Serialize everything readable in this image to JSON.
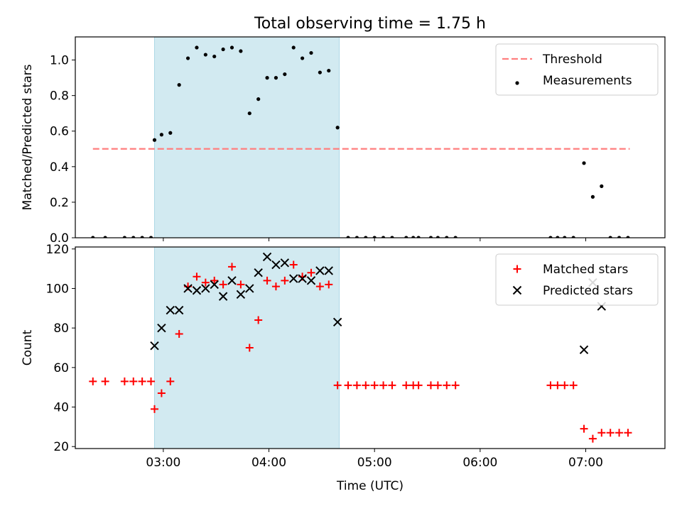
{
  "title": "Total observing time = 1.75 h",
  "chart_data": [
    {
      "type": "scatter",
      "title": "Total observing time = 1.75 h",
      "xlabel": "",
      "ylabel": "Matched/Predicted stars",
      "xlim": [
        "02:10",
        "07:45"
      ],
      "ylim": [
        0,
        1.13
      ],
      "yticks": [
        0.0,
        0.2,
        0.4,
        0.6,
        0.8,
        1.0
      ],
      "ytick_labels": [
        "0.0",
        "0.2",
        "0.4",
        "0.6",
        "0.8",
        "1.0"
      ],
      "xticks": [
        "03:00",
        "04:00",
        "05:00",
        "06:00",
        "07:00"
      ],
      "legend_position": "top-right",
      "shaded_interval": {
        "start": "02:55",
        "end": "04:40",
        "color": "#add8e6"
      },
      "threshold": {
        "name": "Threshold",
        "value": 0.5,
        "x_start": "02:20",
        "x_end": "07:25",
        "color": "#ff7f7f"
      },
      "series": [
        {
          "name": "Measurements",
          "color": "#000000",
          "x": [
            "02:20",
            "02:27",
            "02:38",
            "02:43",
            "02:48",
            "02:53",
            "02:55",
            "02:59",
            "03:04",
            "03:09",
            "03:14",
            "03:19",
            "03:24",
            "03:29",
            "03:34",
            "03:39",
            "03:44",
            "03:49",
            "03:54",
            "03:59",
            "04:04",
            "04:09",
            "04:14",
            "04:19",
            "04:24",
            "04:29",
            "04:34",
            "04:39",
            "04:45",
            "04:50",
            "04:55",
            "05:00",
            "05:05",
            "05:10",
            "05:18",
            "05:22",
            "05:25",
            "05:32",
            "05:36",
            "05:41",
            "05:46",
            "06:40",
            "06:44",
            "06:48",
            "06:53",
            "06:59",
            "07:04",
            "07:09",
            "07:14",
            "07:19",
            "07:24"
          ],
          "y": [
            0,
            0,
            0,
            0,
            0,
            0,
            0.55,
            0.58,
            0.59,
            0.86,
            1.01,
            1.07,
            1.03,
            1.02,
            1.06,
            1.07,
            1.05,
            0.7,
            0.78,
            0.9,
            0.9,
            0.92,
            1.07,
            1.01,
            1.04,
            0.93,
            0.94,
            0.62,
            0,
            0,
            0,
            0,
            0,
            0,
            0,
            0,
            0,
            0,
            0,
            0,
            0,
            0,
            0,
            0,
            0,
            0.42,
            0.23,
            0.29,
            0,
            0,
            0
          ]
        }
      ]
    },
    {
      "type": "scatter",
      "title": "",
      "xlabel": "Time (UTC)",
      "ylabel": "Count",
      "xlim": [
        "02:10",
        "07:45"
      ],
      "ylim": [
        19,
        121
      ],
      "yticks": [
        20,
        40,
        60,
        80,
        100,
        120
      ],
      "ytick_labels": [
        "20",
        "40",
        "60",
        "80",
        "100",
        "120"
      ],
      "xticks": [
        "03:00",
        "04:00",
        "05:00",
        "06:00",
        "07:00"
      ],
      "legend_position": "top-right",
      "shaded_interval": {
        "start": "02:55",
        "end": "04:40",
        "color": "#add8e6"
      },
      "series": [
        {
          "name": "Matched stars",
          "marker": "plus",
          "color": "#ff0000",
          "x": [
            "02:20",
            "02:27",
            "02:38",
            "02:43",
            "02:48",
            "02:53",
            "02:55",
            "02:59",
            "03:04",
            "03:09",
            "03:14",
            "03:19",
            "03:24",
            "03:29",
            "03:34",
            "03:39",
            "03:44",
            "03:49",
            "03:54",
            "03:59",
            "04:04",
            "04:09",
            "04:14",
            "04:19",
            "04:24",
            "04:29",
            "04:34",
            "04:39",
            "04:45",
            "04:50",
            "04:55",
            "05:00",
            "05:05",
            "05:10",
            "05:18",
            "05:22",
            "05:25",
            "05:32",
            "05:36",
            "05:41",
            "05:46",
            "06:40",
            "06:44",
            "06:48",
            "06:53",
            "06:59",
            "07:04",
            "07:09",
            "07:14",
            "07:19",
            "07:24"
          ],
          "y": [
            53,
            53,
            53,
            53,
            53,
            53,
            39,
            47,
            53,
            77,
            101,
            106,
            103,
            104,
            102,
            111,
            102,
            70,
            84,
            104,
            101,
            104,
            112,
            106,
            108,
            101,
            102,
            51,
            51,
            51,
            51,
            51,
            51,
            51,
            51,
            51,
            51,
            51,
            51,
            51,
            51,
            51,
            51,
            51,
            51,
            29,
            24,
            27,
            27,
            27,
            27
          ]
        },
        {
          "name": "Predicted stars",
          "marker": "x",
          "color": "#000000",
          "x": [
            "02:55",
            "02:59",
            "03:04",
            "03:09",
            "03:14",
            "03:19",
            "03:24",
            "03:29",
            "03:34",
            "03:39",
            "03:44",
            "03:49",
            "03:54",
            "03:59",
            "04:04",
            "04:09",
            "04:14",
            "04:19",
            "04:24",
            "04:29",
            "04:34",
            "04:39",
            "06:59",
            "07:04",
            "07:09"
          ],
          "y": [
            71,
            80,
            89,
            89,
            100,
            99,
            100,
            102,
            96,
            104,
            97,
            100,
            108,
            116,
            112,
            113,
            105,
            105,
            104,
            109,
            109,
            83,
            69,
            103,
            91
          ]
        }
      ]
    }
  ]
}
